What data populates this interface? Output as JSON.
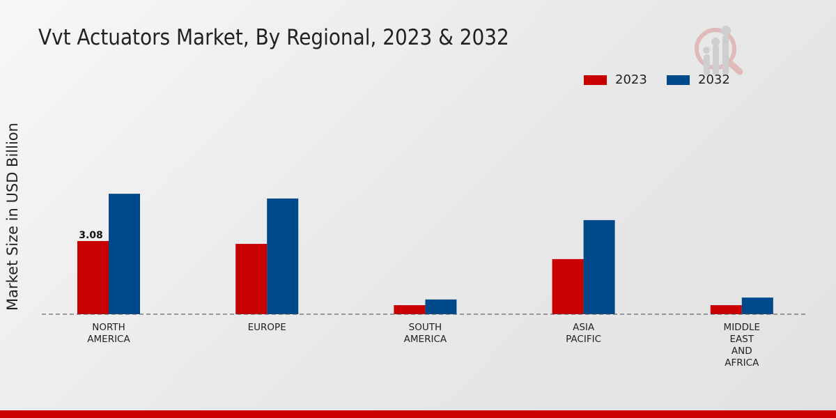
{
  "chart_data": {
    "type": "bar",
    "title": "Vvt Actuators Market, By Regional, 2023 & 2032",
    "xlabel": "",
    "ylabel": "Market Size in USD Billion",
    "categories": [
      [
        "NORTH",
        "AMERICA"
      ],
      [
        "EUROPE"
      ],
      [
        "SOUTH",
        "AMERICA"
      ],
      [
        "ASIA",
        "PACIFIC"
      ],
      [
        "MIDDLE",
        "EAST",
        "AND",
        "AFRICA"
      ]
    ],
    "series": [
      {
        "name": "2023",
        "color": "#c80000",
        "values": [
          3.08,
          2.96,
          0.38,
          2.32,
          0.38
        ]
      },
      {
        "name": "2032",
        "color": "#004a8b",
        "values": [
          5.07,
          4.87,
          0.62,
          3.96,
          0.7
        ]
      }
    ],
    "data_labels": [
      {
        "series": 0,
        "index": 0,
        "text": "3.08"
      }
    ],
    "ylim": [
      0,
      6
    ],
    "grid": false,
    "legend_position": "top-right"
  }
}
